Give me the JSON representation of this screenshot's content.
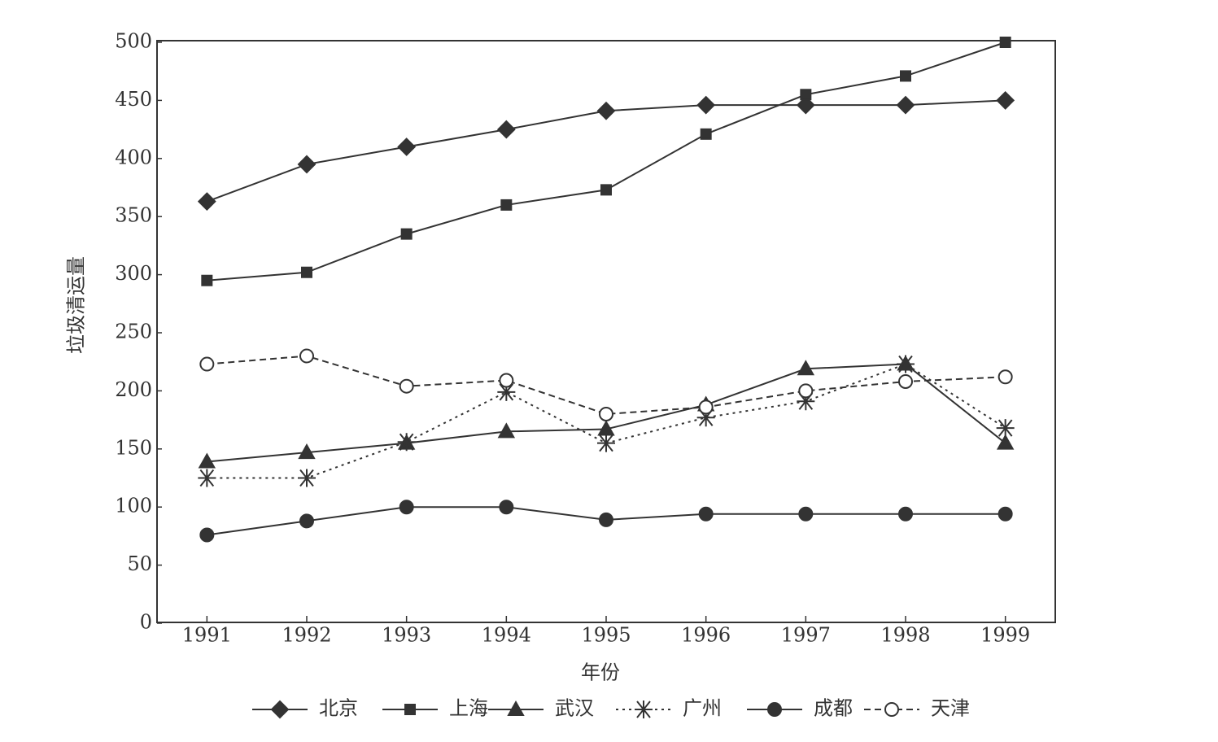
{
  "chart_data": {
    "type": "line",
    "x_label": "年份",
    "y_label": "垃圾清运量",
    "x": [
      1991,
      1992,
      1993,
      1994,
      1995,
      1996,
      1997,
      1998,
      1999
    ],
    "xlim": [
      1990.5,
      1999.5
    ],
    "xticks": [
      1991,
      1992,
      1993,
      1994,
      1995,
      1996,
      1997,
      1998,
      1999
    ],
    "ylim": [
      0,
      500
    ],
    "yticks": [
      0,
      50,
      100,
      150,
      200,
      250,
      300,
      350,
      400,
      450,
      500
    ],
    "series": [
      {
        "name": "北京",
        "color": "#333333",
        "marker": "diamond",
        "line_style": "solid",
        "values": [
          363,
          395,
          410,
          425,
          441,
          446,
          446,
          446,
          450
        ]
      },
      {
        "name": "上海",
        "color": "#333333",
        "marker": "square",
        "line_style": "solid",
        "values": [
          295,
          302,
          335,
          360,
          373,
          421,
          455,
          471,
          500
        ]
      },
      {
        "name": "武汉",
        "color": "#333333",
        "marker": "triangle",
        "line_style": "solid",
        "values": [
          139,
          147,
          155,
          165,
          167,
          188,
          219,
          223,
          155
        ]
      },
      {
        "name": "广州",
        "color": "#333333",
        "marker": "asterisk",
        "line_style": "dotted",
        "values": [
          125,
          125,
          156,
          199,
          155,
          177,
          191,
          223,
          168
        ]
      },
      {
        "name": "成都",
        "color": "#333333",
        "marker": "circle",
        "line_style": "solid",
        "values": [
          76,
          88,
          100,
          100,
          89,
          94,
          94,
          94,
          94
        ]
      },
      {
        "name": "天津",
        "color": "#333333",
        "marker": "open-circle",
        "line_style": "dashed",
        "values": [
          223,
          230,
          204,
          209,
          180,
          186,
          200,
          208,
          212
        ]
      }
    ]
  }
}
